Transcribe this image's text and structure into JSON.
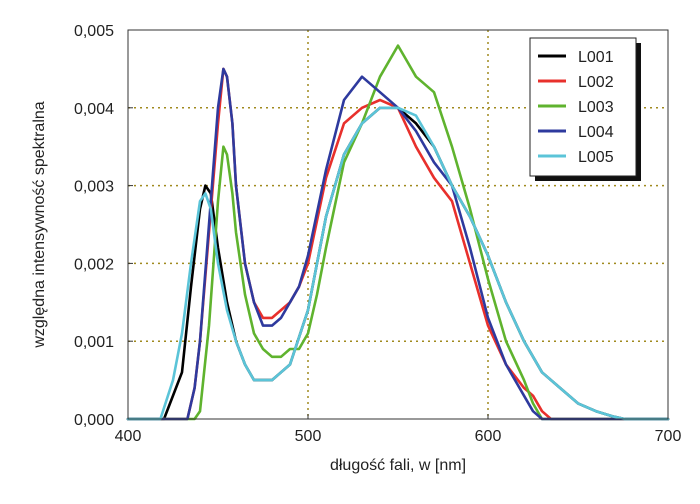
{
  "chart_data": {
    "type": "line",
    "xlabel": "długość fali, w [nm]",
    "ylabel": "względna intensywność spektralna",
    "xlim": [
      400,
      700
    ],
    "ylim": [
      0,
      0.005
    ],
    "xticks": [
      400,
      500,
      600,
      700
    ],
    "xtick_labels": [
      "400",
      "500",
      "600",
      "700"
    ],
    "yticks": [
      0,
      0.001,
      0.002,
      0.003,
      0.004,
      0.005
    ],
    "ytick_labels": [
      "0,000",
      "0,001",
      "0,002",
      "0,003",
      "0,004",
      "0,005"
    ],
    "grid": "dotted major gridlines (inner)",
    "legend_position": "top-right",
    "series": [
      {
        "name": "L001",
        "color": "#000000",
        "x": [
          400,
          420,
          430,
          435,
          440,
          443,
          446,
          450,
          455,
          460,
          465,
          470,
          475,
          480,
          485,
          490,
          500,
          510,
          520,
          530,
          540,
          550,
          560,
          570,
          580,
          590,
          600,
          610,
          620,
          630,
          640,
          650,
          660,
          670,
          676,
          700
        ],
        "y": [
          0,
          0,
          0.0006,
          0.0017,
          0.0027,
          0.003,
          0.0029,
          0.0022,
          0.0015,
          0.001,
          0.0007,
          0.0005,
          0.0005,
          0.0005,
          0.0006,
          0.0007,
          0.0014,
          0.0026,
          0.0034,
          0.0038,
          0.004,
          0.004,
          0.0038,
          0.0035,
          0.003,
          0.0026,
          0.0021,
          0.0015,
          0.001,
          0.0006,
          0.0004,
          0.0002,
          0.0001,
          3e-05,
          0,
          0
        ]
      },
      {
        "name": "L002",
        "color": "#e8302c",
        "x": [
          400,
          430,
          433,
          437,
          440,
          445,
          450,
          453,
          455,
          458,
          460,
          465,
          470,
          475,
          480,
          485,
          490,
          495,
          500,
          510,
          520,
          530,
          540,
          550,
          560,
          570,
          580,
          590,
          600,
          610,
          620,
          625,
          630,
          635,
          700
        ],
        "y": [
          0,
          0,
          0,
          0.0004,
          0.001,
          0.0024,
          0.0038,
          0.0045,
          0.0044,
          0.0038,
          0.003,
          0.002,
          0.0015,
          0.0013,
          0.0013,
          0.0014,
          0.0015,
          0.0017,
          0.002,
          0.0031,
          0.0038,
          0.004,
          0.0041,
          0.004,
          0.0035,
          0.0031,
          0.0028,
          0.002,
          0.0012,
          0.0007,
          0.0004,
          0.0003,
          0.0001,
          0,
          0
        ]
      },
      {
        "name": "L003",
        "color": "#5fb32e",
        "x": [
          400,
          437,
          440,
          445,
          450,
          453,
          455,
          458,
          460,
          465,
          470,
          475,
          480,
          485,
          490,
          495,
          500,
          505,
          510,
          520,
          530,
          540,
          550,
          555,
          560,
          570,
          580,
          590,
          600,
          610,
          620,
          625,
          630,
          700
        ],
        "y": [
          0,
          0,
          0.0001,
          0.0012,
          0.0028,
          0.0035,
          0.0034,
          0.0029,
          0.0024,
          0.0016,
          0.0011,
          0.0009,
          0.0008,
          0.0008,
          0.0009,
          0.0009,
          0.0011,
          0.0016,
          0.0022,
          0.0033,
          0.0038,
          0.0044,
          0.0048,
          0.0046,
          0.0044,
          0.0042,
          0.0035,
          0.0027,
          0.0018,
          0.001,
          0.0005,
          0.0002,
          0,
          0
        ]
      },
      {
        "name": "L004",
        "color": "#2e3a9e",
        "x": [
          400,
          430,
          433,
          437,
          440,
          445,
          450,
          453,
          455,
          458,
          460,
          465,
          470,
          475,
          480,
          485,
          490,
          495,
          500,
          510,
          520,
          530,
          540,
          550,
          560,
          570,
          580,
          590,
          600,
          610,
          620,
          625,
          630,
          700
        ],
        "y": [
          0,
          0,
          0,
          0.0004,
          0.001,
          0.0025,
          0.004,
          0.0045,
          0.0044,
          0.0038,
          0.003,
          0.002,
          0.0015,
          0.0012,
          0.0012,
          0.0013,
          0.0015,
          0.0017,
          0.0021,
          0.0032,
          0.0041,
          0.0044,
          0.0042,
          0.004,
          0.0037,
          0.0033,
          0.003,
          0.0022,
          0.0013,
          0.0007,
          0.0003,
          0.0001,
          0,
          0
        ]
      },
      {
        "name": "L005",
        "color": "#5bc4d8",
        "x": [
          400,
          418,
          425,
          430,
          435,
          440,
          443,
          446,
          450,
          455,
          460,
          465,
          470,
          475,
          480,
          485,
          490,
          500,
          510,
          520,
          530,
          540,
          550,
          560,
          570,
          580,
          590,
          600,
          610,
          620,
          630,
          640,
          650,
          660,
          670,
          676,
          700
        ],
        "y": [
          0,
          0,
          0.0005,
          0.0011,
          0.002,
          0.0028,
          0.0029,
          0.0027,
          0.002,
          0.0014,
          0.001,
          0.0007,
          0.0005,
          0.0005,
          0.0005,
          0.0006,
          0.0007,
          0.0014,
          0.0026,
          0.0034,
          0.0038,
          0.004,
          0.004,
          0.0039,
          0.0035,
          0.003,
          0.0026,
          0.0021,
          0.0015,
          0.001,
          0.0006,
          0.0004,
          0.0002,
          0.0001,
          3e-05,
          0,
          0
        ]
      }
    ]
  }
}
